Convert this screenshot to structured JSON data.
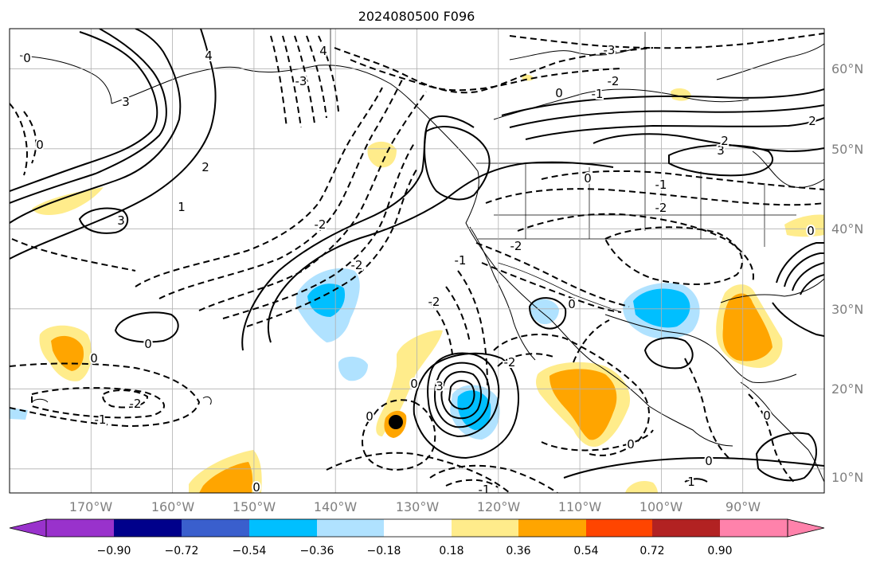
{
  "title": "2024080500 F096",
  "map": {
    "lon_ticks": [
      "170°W",
      "160°W",
      "150°W",
      "140°W",
      "130°W",
      "120°W",
      "110°W",
      "100°W",
      "90°W"
    ],
    "lat_ticks": [
      "60°N",
      "50°N",
      "40°N",
      "30°N",
      "20°N",
      "10°N"
    ],
    "lon_range": [
      -180,
      -80
    ],
    "lat_range": [
      8,
      66
    ],
    "contour_labels": [
      "-1",
      "-2",
      "-3",
      "0",
      "1",
      "2",
      "3",
      "4"
    ],
    "storm_marker": {
      "lon": -133,
      "lat": 16.5
    }
  },
  "colorbar": {
    "levels": [
      "−0.90",
      "−0.72",
      "−0.54",
      "−0.36",
      "−0.18",
      "0.18",
      "0.36",
      "0.54",
      "0.72",
      "0.90"
    ],
    "colors": [
      "#9932cc",
      "#00008b",
      "#3a5fcd",
      "#00bfff",
      "#b0e2ff",
      "#ffffff",
      "#ffec8b",
      "#ffa500",
      "#ff4500",
      "#b22222",
      "#ff82ab"
    ]
  }
}
